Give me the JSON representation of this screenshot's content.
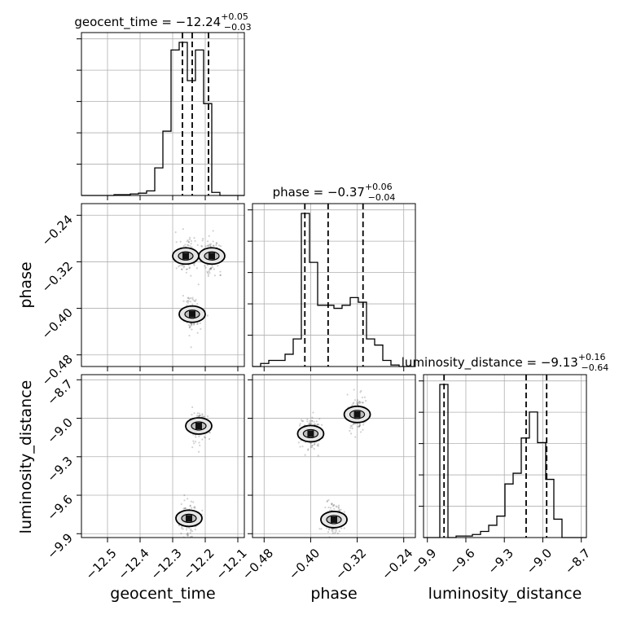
{
  "chart_data": {
    "type": "corner",
    "parameters": [
      "geocent_time",
      "phase",
      "luminosity_distance"
    ],
    "titles": [
      {
        "param": "geocent_time",
        "prefix": "geocent_time = ",
        "median": "−12.24",
        "upper": "+0.05",
        "lower": "−0.03"
      },
      {
        "param": "phase",
        "prefix": "phase = ",
        "median": "−0.37",
        "upper": "+0.06",
        "lower": "−0.04"
      },
      {
        "param": "luminosity_distance",
        "prefix": "luminosity_distance = ",
        "median": "−9.13",
        "upper": "+0.16",
        "lower": "−0.64"
      }
    ],
    "axis_ranges": {
      "geocent_time": [
        -12.58,
        -12.08
      ],
      "phase": [
        -0.5,
        -0.22
      ],
      "luminosity_distance": [
        -9.93,
        -8.66
      ]
    },
    "ticks": {
      "geocent_time": [
        -12.5,
        -12.4,
        -12.3,
        -12.2,
        -12.1
      ],
      "phase": [
        -0.48,
        -0.4,
        -0.32,
        -0.24
      ],
      "luminosity_distance": [
        -9.9,
        -9.6,
        -9.3,
        -9.0,
        -8.7
      ]
    },
    "tick_labels": {
      "geocent_time": [
        "−12.5",
        "−12.4",
        "−12.3",
        "−12.2",
        "−12.1"
      ],
      "phase": [
        "−0.48",
        "−0.40",
        "−0.32",
        "−0.24"
      ],
      "luminosity_distance": [
        "−9.9",
        "−9.6",
        "−9.3",
        "−9.0",
        "−8.7"
      ]
    },
    "quantiles": {
      "geocent_time": [
        -12.27,
        -12.24,
        -12.19
      ],
      "phase": [
        -0.41,
        -0.37,
        -0.31
      ],
      "luminosity_distance": [
        -9.77,
        -9.13,
        -8.97
      ]
    },
    "histograms": {
      "geocent_time": {
        "edges": [
          -12.58,
          -12.555,
          -12.53,
          -12.505,
          -12.48,
          -12.455,
          -12.43,
          -12.405,
          -12.38,
          -12.355,
          -12.33,
          -12.305,
          -12.28,
          -12.255,
          -12.23,
          -12.205,
          -12.18,
          -12.155,
          -12.13,
          -12.105,
          -12.08
        ],
        "counts": [
          0,
          0,
          0,
          0,
          0.5,
          0.5,
          1,
          1.5,
          3,
          18,
          42,
          95,
          100,
          75,
          95,
          60,
          2,
          0,
          0,
          0
        ]
      },
      "phase": {
        "edges": [
          -0.5,
          -0.486,
          -0.472,
          -0.458,
          -0.444,
          -0.43,
          -0.416,
          -0.402,
          -0.388,
          -0.374,
          -0.36,
          -0.346,
          -0.332,
          -0.318,
          -0.304,
          -0.29,
          -0.276,
          -0.262,
          -0.248,
          -0.234,
          -0.22
        ],
        "counts": [
          0,
          2,
          4,
          4,
          8,
          18,
          100,
          68,
          40,
          40,
          38,
          40,
          45,
          42,
          18,
          14,
          4,
          1,
          0,
          0
        ]
      },
      "luminosity_distance": {
        "edges": [
          -9.93,
          -9.8665,
          -9.803,
          -9.7395,
          -9.676,
          -9.6125,
          -9.549,
          -9.4855,
          -9.422,
          -9.3585,
          -9.295,
          -9.2315,
          -9.168,
          -9.1045,
          -9.041,
          -8.9775,
          -8.914,
          -8.8505,
          -8.787,
          -8.7235,
          -8.66
        ],
        "counts": [
          0,
          0,
          100,
          0,
          1,
          1,
          2,
          4,
          8,
          14,
          35,
          42,
          65,
          82,
          62,
          38,
          12,
          0,
          0,
          0
        ]
      }
    },
    "density_2d": [
      {
        "x": "geocent_time",
        "y": "phase",
        "modes": [
          {
            "x": -12.26,
            "y": -0.31
          },
          {
            "x": -12.18,
            "y": -0.31
          },
          {
            "x": -12.24,
            "y": -0.41
          }
        ]
      },
      {
        "x": "geocent_time",
        "y": "luminosity_distance",
        "modes": [
          {
            "x": -12.22,
            "y": -9.06
          },
          {
            "x": -12.25,
            "y": -9.78
          }
        ]
      },
      {
        "x": "phase",
        "y": "luminosity_distance",
        "modes": [
          {
            "x": -0.4,
            "y": -9.12
          },
          {
            "x": -0.32,
            "y": -8.97
          },
          {
            "x": -0.36,
            "y": -9.79
          }
        ]
      }
    ],
    "axis_labels": [
      "geocent_time",
      "phase",
      "luminosity_distance"
    ],
    "grid": true
  }
}
